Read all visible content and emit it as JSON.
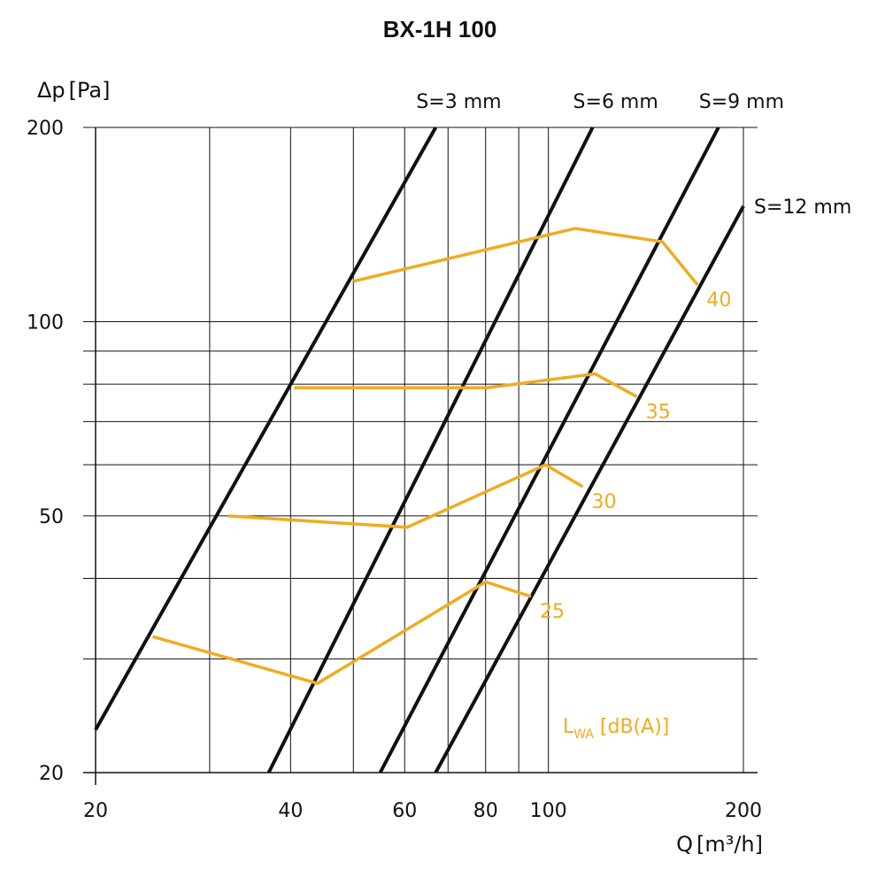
{
  "chart_data": {
    "type": "line",
    "title": "BX-1H 100",
    "x_axis": {
      "label_main": "Q",
      "label_unit": "[m³/h]",
      "scale": "log",
      "range": [
        20,
        200
      ],
      "ticks": [
        20,
        40,
        60,
        80,
        100,
        200
      ],
      "tick_labels": [
        "20",
        "40",
        "60",
        "80",
        "100",
        "200"
      ],
      "grid_lines": [
        30,
        40,
        50,
        60,
        70,
        80,
        90,
        100,
        200
      ]
    },
    "y_axis": {
      "label_main": "Δp",
      "label_unit": "[Pa]",
      "scale": "log",
      "range": [
        20,
        200
      ],
      "ticks": [
        20,
        50,
        100,
        200
      ],
      "tick_labels": [
        "20",
        "50",
        "100",
        "200"
      ],
      "grid_lines": [
        30,
        40,
        50,
        60,
        70,
        80,
        90,
        100,
        200
      ]
    },
    "pressure_lines": [
      {
        "name": "S=3 mm",
        "points": [
          [
            20,
            23.3
          ],
          [
            67,
            200
          ]
        ]
      },
      {
        "name": "S=6 mm",
        "points": [
          [
            37,
            20
          ],
          [
            117,
            200
          ]
        ]
      },
      {
        "name": "S=9 mm",
        "points": [
          [
            55,
            20
          ],
          [
            183,
            200
          ]
        ]
      },
      {
        "name": "S=12 mm",
        "points": [
          [
            67,
            20
          ],
          [
            200,
            151
          ]
        ]
      }
    ],
    "sound_series": [
      {
        "name": "25",
        "points": [
          [
            24.5,
            32.5
          ],
          [
            44,
            27.5
          ],
          [
            80,
            39.5
          ],
          [
            94,
            37.5
          ]
        ]
      },
      {
        "name": "30",
        "points": [
          [
            32,
            50
          ],
          [
            60.5,
            48
          ],
          [
            99,
            60
          ],
          [
            113,
            55.5
          ]
        ]
      },
      {
        "name": "35",
        "points": [
          [
            40.5,
            79
          ],
          [
            80.5,
            79
          ],
          [
            118,
            83
          ],
          [
            137,
            76.5
          ]
        ]
      },
      {
        "name": "40",
        "points": [
          [
            50,
            115.5
          ],
          [
            110,
            139.5
          ],
          [
            150,
            133
          ],
          [
            170,
            114
          ]
        ]
      }
    ],
    "sound_label": {
      "main": "L",
      "sub": "WA",
      "unit": " [dB(A)]"
    },
    "colors": {
      "pressure": "#111111",
      "sound": "#F0AB20",
      "grid": "#111111"
    }
  }
}
